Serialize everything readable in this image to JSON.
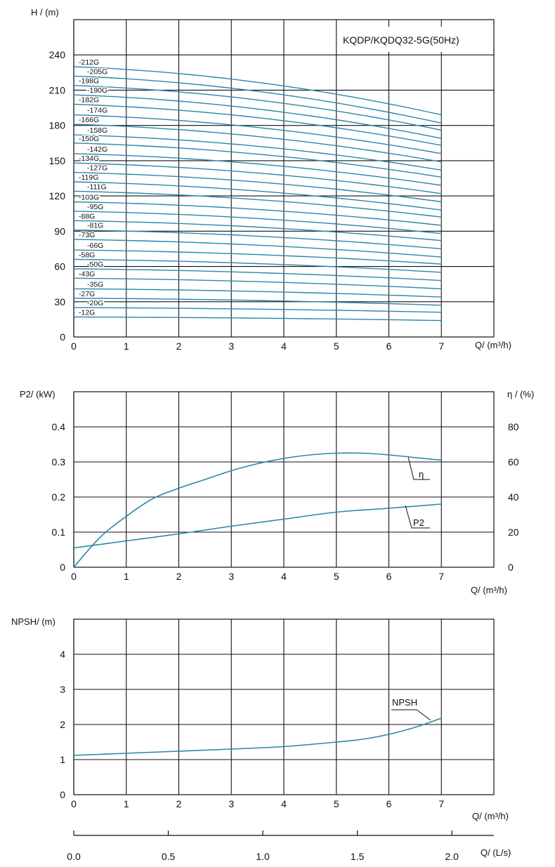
{
  "colors": {
    "curve": "#2a88a8",
    "grid": "#111111"
  },
  "chart_data": [
    {
      "type": "line",
      "title": "KQDP/KQDQ32-5G(50Hz)",
      "ylabel": "H / (m)",
      "xlabel": "Q/ (m³/h)",
      "xlim": [
        0,
        8
      ],
      "ylim": [
        0,
        270
      ],
      "xticks": [
        "0",
        "1",
        "2",
        "3",
        "4",
        "5",
        "6",
        "7"
      ],
      "yticks": [
        "0",
        "30",
        "60",
        "90",
        "120",
        "150",
        "180",
        "210",
        "240"
      ],
      "grid": true,
      "series": [
        {
          "name": "-212G",
          "H0": 230,
          "H7": 189
        },
        {
          "name": "-205G",
          "H0": 222,
          "H7": 182
        },
        {
          "name": "-198G",
          "H0": 214,
          "H7": 176
        },
        {
          "name": "-190G",
          "H0": 206,
          "H7": 169
        },
        {
          "name": "-182G",
          "H0": 198,
          "H7": 163
        },
        {
          "name": "-174G",
          "H0": 189,
          "H7": 156
        },
        {
          "name": "-166G",
          "H0": 181,
          "H7": 149
        },
        {
          "name": "-158G",
          "H0": 172,
          "H7": 142
        },
        {
          "name": "-150G",
          "H0": 165,
          "H7": 136
        },
        {
          "name": "-142G",
          "H0": 156,
          "H7": 129
        },
        {
          "name": "-134G",
          "H0": 148,
          "H7": 122
        },
        {
          "name": "-127G",
          "H0": 140,
          "H7": 115
        },
        {
          "name": "-119G",
          "H0": 132,
          "H7": 108
        },
        {
          "name": "-111G",
          "H0": 124,
          "H7": 102
        },
        {
          "name": "-103G",
          "H0": 115,
          "H7": 95
        },
        {
          "name": "-95G",
          "H0": 107,
          "H7": 88
        },
        {
          "name": "-88G",
          "H0": 99,
          "H7": 82
        },
        {
          "name": "-81G",
          "H0": 91,
          "H7": 75
        },
        {
          "name": "-73G",
          "H0": 83,
          "H7": 68
        },
        {
          "name": "-66G",
          "H0": 74,
          "H7": 62
        },
        {
          "name": "-58G",
          "H0": 66,
          "H7": 55
        },
        {
          "name": "-50G",
          "H0": 58,
          "H7": 48
        },
        {
          "name": "-43G",
          "H0": 50,
          "H7": 41
        },
        {
          "name": "-35G",
          "H0": 41,
          "H7": 34
        },
        {
          "name": "-27G",
          "H0": 33,
          "H7": 27
        },
        {
          "name": "-20G",
          "H0": 25,
          "H7": 21
        },
        {
          "name": "-12G",
          "H0": 17,
          "H7": 14
        }
      ]
    },
    {
      "type": "line",
      "ylabel": "P2/ (kW)",
      "y2label": "η / (%)",
      "xlabel": "Q/ (m³/h)",
      "xlim": [
        0,
        8
      ],
      "ylim": [
        0,
        0.5
      ],
      "y2lim": [
        0,
        100
      ],
      "xticks": [
        "0",
        "1",
        "2",
        "3",
        "4",
        "5",
        "6",
        "7"
      ],
      "yticks": [
        "0",
        "0.1",
        "0.2",
        "0.3",
        "0.4"
      ],
      "y2ticks": [
        "0",
        "20",
        "40",
        "60",
        "80"
      ],
      "grid": true,
      "series": [
        {
          "name": "η",
          "axis": "right",
          "x": [
            0,
            0.5,
            1,
            1.5,
            2,
            2.5,
            3,
            3.5,
            4,
            4.5,
            5,
            5.5,
            6,
            6.5,
            7
          ],
          "y": [
            0,
            17,
            29,
            39,
            45,
            50,
            55,
            59,
            62,
            64,
            65,
            65,
            64,
            62.5,
            61
          ]
        },
        {
          "name": "P2",
          "axis": "left",
          "x": [
            0,
            1,
            2,
            3,
            4,
            5,
            6,
            7
          ],
          "y": [
            0.055,
            0.075,
            0.095,
            0.117,
            0.137,
            0.157,
            0.168,
            0.18
          ]
        }
      ]
    },
    {
      "type": "line",
      "ylabel": "NPSH/ (m)",
      "xlabel": "Q/ (m³/h)",
      "x2label": "Q/ (L/s)",
      "xlim": [
        0,
        8
      ],
      "ylim": [
        0,
        5
      ],
      "xticks": [
        "0",
        "1",
        "2",
        "3",
        "4",
        "5",
        "6",
        "7"
      ],
      "x2ticks": [
        "0.0",
        "0.5",
        "1.0",
        "1.5",
        "2.0"
      ],
      "yticks": [
        "0",
        "1",
        "2",
        "3",
        "4"
      ],
      "grid": true,
      "series": [
        {
          "name": "NPSH",
          "x": [
            0,
            1,
            2,
            3,
            4,
            5,
            5.5,
            6,
            6.5,
            7
          ],
          "y": [
            1.12,
            1.18,
            1.24,
            1.3,
            1.37,
            1.5,
            1.58,
            1.72,
            1.92,
            2.18
          ]
        }
      ]
    }
  ]
}
